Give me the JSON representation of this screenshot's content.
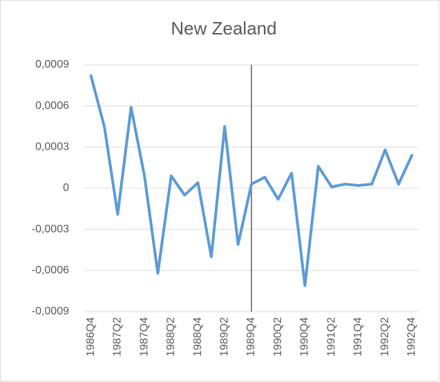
{
  "chart_data": {
    "type": "line",
    "title": "New Zealand",
    "categories": [
      "1986Q4",
      null,
      "1987Q2",
      null,
      "1987Q4",
      null,
      "1988Q2",
      null,
      "1988Q4",
      null,
      "1989Q2",
      null,
      "1989Q4",
      null,
      "1990Q2",
      null,
      "1990Q4",
      null,
      "1991Q2",
      null,
      "1991Q4",
      null,
      "1992Q2",
      null,
      "1992Q4"
    ],
    "series": [
      {
        "name": "New Zealand",
        "color": "#5b9bd5",
        "values": [
          0.00082,
          0.00045,
          -0.00019,
          0.00059,
          9e-05,
          -0.00062,
          9e-05,
          -5e-05,
          4e-05,
          -0.0005,
          0.00045,
          -0.00041,
          3e-05,
          8e-05,
          -8e-05,
          0.00011,
          -0.00071,
          0.00016,
          1e-05,
          3e-05,
          2e-05,
          3e-05,
          0.00028,
          3e-05,
          0.00024
        ]
      }
    ],
    "ylim": [
      -0.0009,
      0.0009
    ],
    "yticks": [
      {
        "value": -0.0009,
        "label": "-0,0009"
      },
      {
        "value": -0.0006,
        "label": "-0,0006"
      },
      {
        "value": -0.0003,
        "label": "-0,0003"
      },
      0,
      {
        "value": 0.0003,
        "label": "0,0003"
      },
      {
        "value": 0.0006,
        "label": "0,0006"
      },
      {
        "value": 0.0009,
        "label": "0,0009"
      }
    ],
    "grid": true,
    "vertical_line_at": "1989Q4"
  }
}
